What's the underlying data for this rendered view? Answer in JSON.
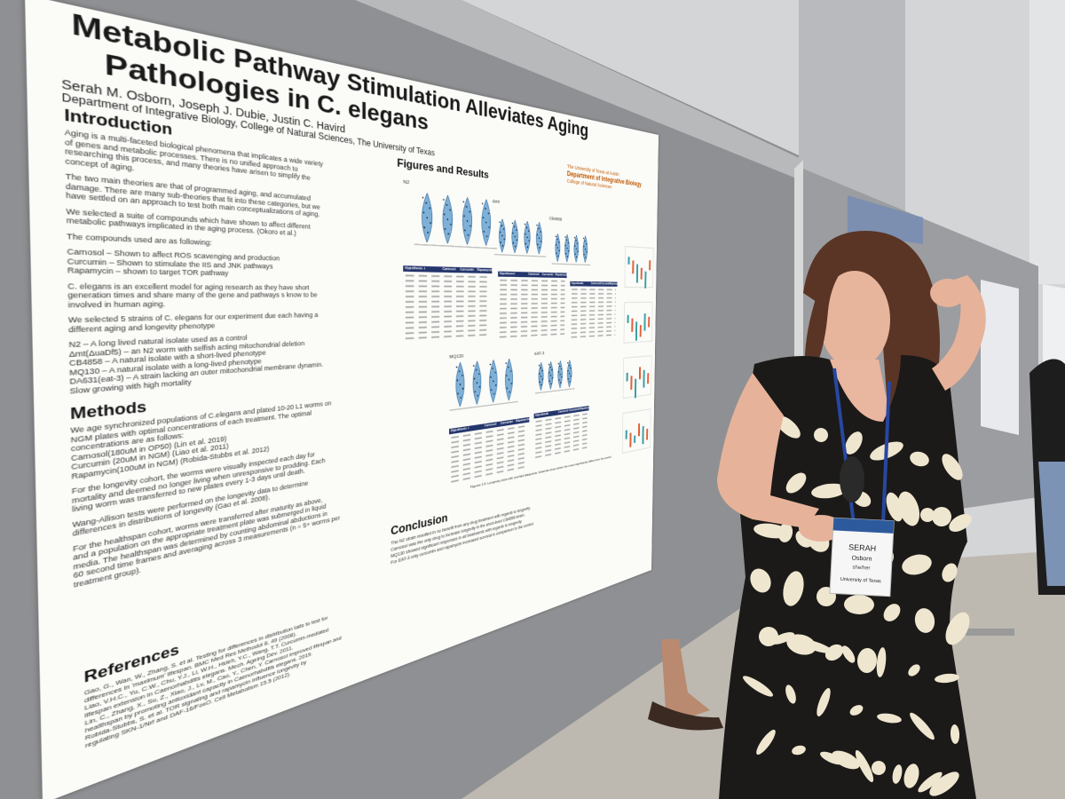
{
  "poster": {
    "title": [
      "Metabolic Pathway Stimulation Alleviates Aging",
      "Pathologies in C. elegans"
    ],
    "authors": "Serah M. Osborn, Joseph J. Dubie, Justin C. Havird",
    "affiliation": "Department of Integrative Biology, College of Natural Sciences, The University of Texas",
    "logo": [
      "The University of Texas at Austin",
      "Department of Integrative Biology",
      "College of Natural Sciences"
    ],
    "introduction": {
      "heading": "Introduction",
      "paragraphs": [
        [
          "Aging is a multi-faceted biological phenomena that implicates a wide variety",
          "of genes and metabolic processes. There is no unified approach to",
          "researching this process, and many theories have arisen to simplify the",
          "concept of aging."
        ],
        [
          "The two main theories are that of programmed aging, and accumulated",
          "damage. There are many sub-theories that fit into these categories, but we",
          "have settled on an approach to test both main conceptualizations of aging."
        ],
        [
          "We selected a suite of compounds which have shown to affect different",
          "metabolic pathways implicated in the aging process. (Okoro et al.)"
        ],
        [
          "The compounds used are as following:"
        ],
        [
          "Carnosol – Shown to affect ROS scavenging and production",
          "Curcumin – Shown to stimulate the IIS and JNK pathways",
          "Rapamycin – shown to target TOR pathway"
        ],
        [
          "C. elegans is an excellent model for aging research as they have short",
          "generation times and share many of the gene and pathways s know to be",
          "involved in human aging."
        ],
        [
          "We selected 5 strains of C. elegans for our experiment due each having a",
          "different aging and longevity phenotype"
        ],
        [
          "N2 – A long lived natural isolate used as a control",
          "Δmt(ΔuaDf5) – an N2 worm with selfish acting mitochondrial deletion",
          "CB4858 – A natural isolate with a short-lived phenotype",
          "MQ130 – A natural isolate with a long-lived phenotype",
          "DA631(eat-3) – A strain lacking an outer mitochondrial membrane dynamin.",
          "Slow growing with high mortality"
        ]
      ]
    },
    "methods": {
      "heading": "Methods",
      "paragraphs": [
        [
          "We age synchronized populations of C.elegans and plated 10-20 L1 worms on",
          "NGM plates with optimal concentrations of each treatment. The optimal",
          "concentrations are as follows:",
          "Carnosol(180uM in OP50) (Lin et al. 2019)",
          "Curcumin (20uM in NGM) (Liao et al. 2011)",
          "Rapamycin(100uM in NGM) (Robida-Stubbs et al. 2012)"
        ],
        [
          "For the longevity cohort, the worms were visually inspected each day for",
          "mortality and deemed no longer living when unresponsive to prodding. Each",
          "living worm was transferred to new plates every 1-3 days until death."
        ],
        [
          "Wang-Allison tests were performed on the longevity data to determine",
          "differences in distributions of longevity (Gao et al. 2008)."
        ],
        [
          "For the healthspan cohort, worms were transferred after maturity as above,",
          "and a population on the appropriate treatment plate was submerged in liquid",
          "media. The healthspan was determined by counting abdominal abductions in",
          "60 second time frames and averaging across 3 measurements (n = 5+ worms per",
          "treatment group)."
        ]
      ]
    },
    "references": {
      "heading": "References",
      "lines": [
        "Gao, G., Wan, W., Zhang, S. et al. Testing for differences in distribution tails to test for",
        "differences in 'maximum' lifespan. BMC Med Res Methodol 8, 49 (2008).",
        "Liao, V.H.C., Yu, C.W., Chu, Y.J., Li, W.H., Hsieh, Y.C., Wang, T.T. Curcumin-mediated",
        "lifespan extension in Caenorhabditis elegans. Mech. Ageing Dev. 2011.",
        "Lin, C., Zhang, X., Su, Z., Xiao, J., Lv, M., Cao, Y., Chen, Y. Carnosol improved lifespan and",
        "healthspan by promoting antioxidant capacity in Caenorhabditis elegans. 2019.",
        "Robida-Stubbs, S. et al. TOR signaling and rapamycin influence longevity by",
        "regulating SKN-1/Nrf and DAF-16/FoxO. Cell Metabolism 15.5 (2012)."
      ]
    },
    "figures": {
      "heading": "Figures and Results",
      "strains": [
        "N2",
        "Δmt",
        "CB4858",
        "MQ130",
        "EAT-3"
      ],
      "table_header": [
        "Hypothesis",
        "t",
        "Carnosol",
        "Curcumin",
        "Rapamycin"
      ],
      "caption": "Figures 1-5: Longevity plots with overlaid datapoints. Asterisks show where the mean significantly differs from the control."
    },
    "conclusion": {
      "heading": "Conclusion",
      "lines": [
        "The N2 strain resulted in no benefit from any drug treatment with regards to longevity.",
        "Carnosol was the only drug to increase longevity in the short-lived CB4858 strain.",
        "MQ130 showed significant responses in all treatments with regards to longevity.",
        "For EAT-3 only curcumin and rapamycin increased survival in comparison to the control."
      ]
    }
  },
  "badge": {
    "name": "SERAH",
    "surname": "Osborn",
    "pronouns": "she/her",
    "org": "University of Texas"
  }
}
